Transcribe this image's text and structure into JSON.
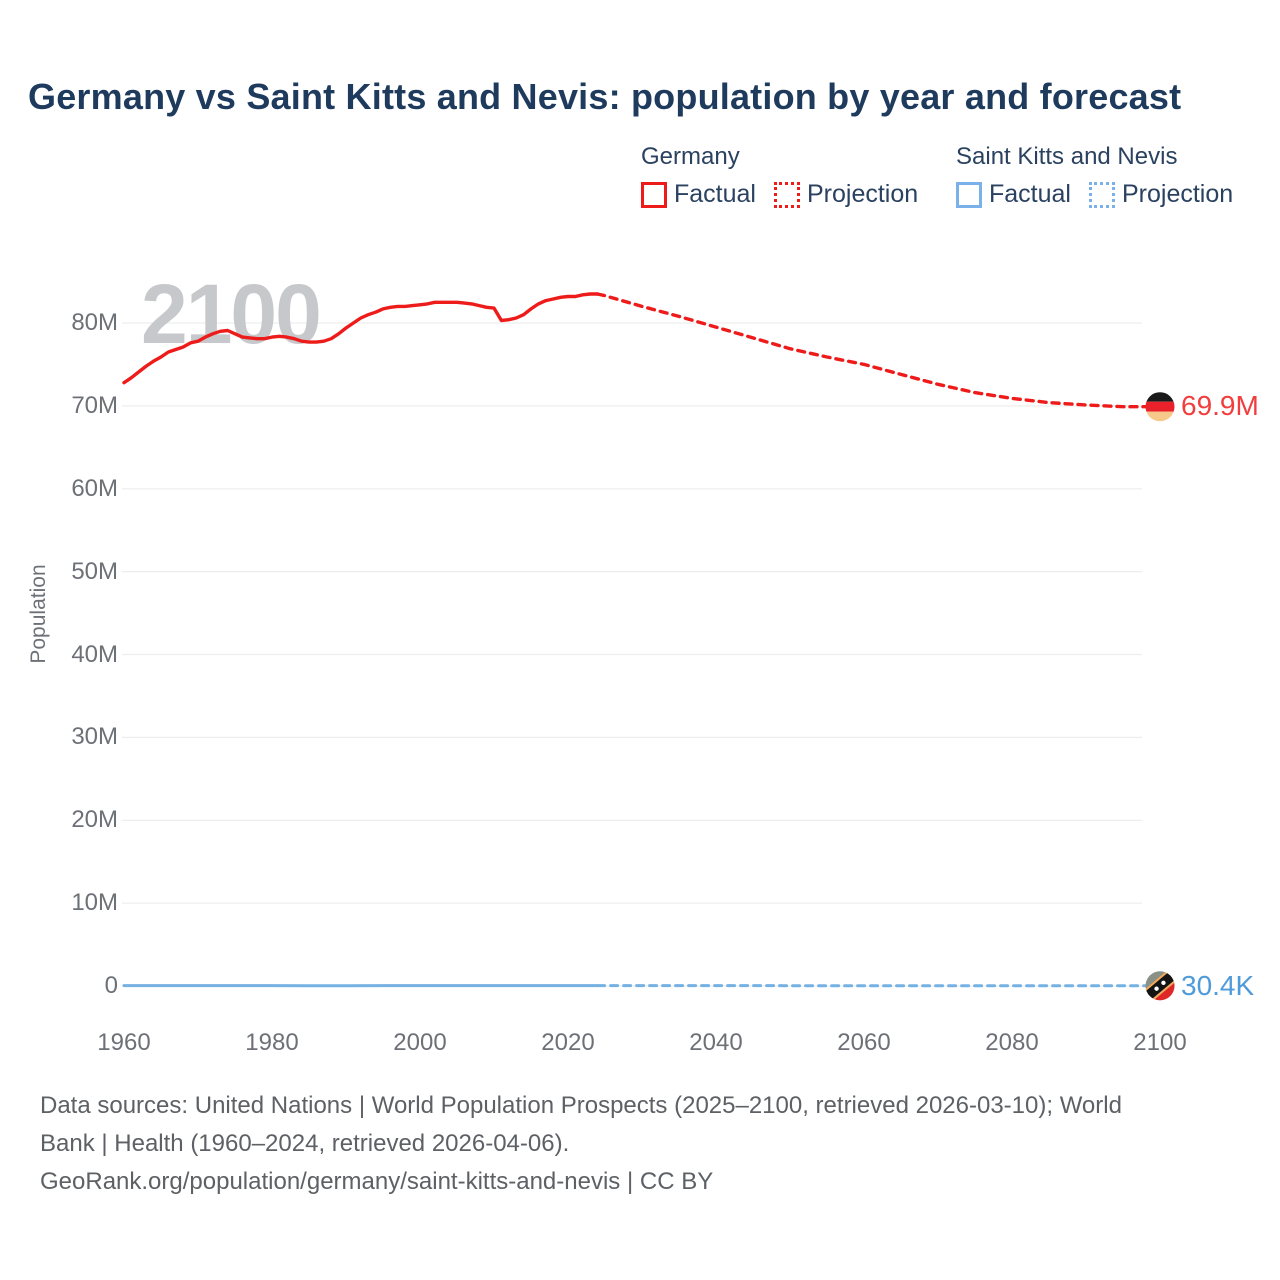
{
  "title": "Germany vs Saint Kitts and Nevis: population by year and forecast",
  "watermark": "2100",
  "y_axis_title": "Population",
  "legend": {
    "germany": {
      "title": "Germany",
      "factual_label": "Factual",
      "projection_label": "Projection"
    },
    "saint_kitts_and_nevis": {
      "title": "Saint Kitts and Nevis",
      "factual_label": "Factual",
      "projection_label": "Projection"
    }
  },
  "end_labels": {
    "germany": "69.9M",
    "saint_kitts_and_nevis": "30.4K"
  },
  "footer": {
    "line1": "Data sources: United Nations | World Population Prospects (2025–2100, retrieved 2026-03-10); World",
    "line2": "Bank | Health (1960–2024, retrieved 2026-04-06).",
    "line3": "GeoRank.org/population/germany/saint-kitts-and-nevis | CC BY"
  },
  "colors": {
    "title_text": "#1e3b5e",
    "legend_text": "#2a4160",
    "axis_text": "#6d7177",
    "footer_text": "#5d6165",
    "watermark": "#c6c8cb",
    "gridline": "#ededef",
    "germany": "#ee1b1b",
    "germany_label": "#f23d3d",
    "saint_kitts_and_nevis": "#75b1e3",
    "saint_kitts_and_nevis_label": "#4f9ad8",
    "legend_blue_box": "#7ab1e8",
    "flag_germany": [
      "#1a1a1a",
      "#e8212b",
      "#f6c88a"
    ],
    "flag_skn_green": "#8b9086",
    "flag_skn_red": "#e02728",
    "flag_skn_yellow": "#f2a85c",
    "flag_skn_black": "#141414"
  },
  "chart_data": {
    "type": "line",
    "title": "Germany vs Saint Kitts and Nevis: population by year and forecast",
    "xlabel": "",
    "ylabel": "Population",
    "values_unit": "millions",
    "xlim": [
      1960,
      2100
    ],
    "ylim_millions": [
      0,
      80
    ],
    "grid": true,
    "legend_position": "top-right",
    "x_ticks": [
      "1960",
      "1980",
      "2000",
      "2020",
      "2040",
      "2060",
      "2080",
      "2100"
    ],
    "y_ticks": [
      "0",
      "10M",
      "20M",
      "30M",
      "40M",
      "50M",
      "60M",
      "70M",
      "80M"
    ],
    "series": [
      {
        "name": "Germany — Factual",
        "style": "solid",
        "color_key": "germany",
        "width": 3.4,
        "points": [
          [
            1960,
            72.8
          ],
          [
            1961,
            73.4
          ],
          [
            1962,
            74.1
          ],
          [
            1963,
            74.8
          ],
          [
            1964,
            75.4
          ],
          [
            1965,
            75.9
          ],
          [
            1966,
            76.5
          ],
          [
            1967,
            76.8
          ],
          [
            1968,
            77.1
          ],
          [
            1969,
            77.6
          ],
          [
            1970,
            77.8
          ],
          [
            1971,
            78.3
          ],
          [
            1972,
            78.7
          ],
          [
            1973,
            79.0
          ],
          [
            1974,
            79.1
          ],
          [
            1975,
            78.7
          ],
          [
            1976,
            78.3
          ],
          [
            1977,
            78.2
          ],
          [
            1978,
            78.1
          ],
          [
            1979,
            78.1
          ],
          [
            1980,
            78.3
          ],
          [
            1981,
            78.4
          ],
          [
            1982,
            78.3
          ],
          [
            1983,
            78.1
          ],
          [
            1984,
            77.8
          ],
          [
            1985,
            77.7
          ],
          [
            1986,
            77.7
          ],
          [
            1987,
            77.8
          ],
          [
            1988,
            78.1
          ],
          [
            1989,
            78.7
          ],
          [
            1990,
            79.4
          ],
          [
            1991,
            80.0
          ],
          [
            1992,
            80.6
          ],
          [
            1993,
            81.0
          ],
          [
            1994,
            81.3
          ],
          [
            1995,
            81.7
          ],
          [
            1996,
            81.9
          ],
          [
            1997,
            82.0
          ],
          [
            1998,
            82.0
          ],
          [
            1999,
            82.1
          ],
          [
            2000,
            82.2
          ],
          [
            2001,
            82.3
          ],
          [
            2002,
            82.5
          ],
          [
            2003,
            82.5
          ],
          [
            2004,
            82.5
          ],
          [
            2005,
            82.5
          ],
          [
            2006,
            82.4
          ],
          [
            2007,
            82.3
          ],
          [
            2008,
            82.1
          ],
          [
            2009,
            81.9
          ],
          [
            2010,
            81.8
          ],
          [
            2011,
            80.3
          ],
          [
            2012,
            80.4
          ],
          [
            2013,
            80.6
          ],
          [
            2014,
            81.0
          ],
          [
            2015,
            81.7
          ],
          [
            2016,
            82.3
          ],
          [
            2017,
            82.7
          ],
          [
            2018,
            82.9
          ],
          [
            2019,
            83.1
          ],
          [
            2020,
            83.2
          ],
          [
            2021,
            83.2
          ],
          [
            2022,
            83.4
          ],
          [
            2023,
            83.5
          ],
          [
            2024,
            83.5
          ]
        ]
      },
      {
        "name": "Germany — Projection",
        "style": "dotted",
        "color_key": "germany",
        "width": 3.4,
        "points": [
          [
            2025,
            83.3
          ],
          [
            2030,
            82.0
          ],
          [
            2035,
            80.8
          ],
          [
            2040,
            79.5
          ],
          [
            2045,
            78.2
          ],
          [
            2050,
            76.9
          ],
          [
            2055,
            75.9
          ],
          [
            2060,
            75.0
          ],
          [
            2065,
            73.8
          ],
          [
            2070,
            72.6
          ],
          [
            2075,
            71.6
          ],
          [
            2080,
            70.9
          ],
          [
            2085,
            70.4
          ],
          [
            2090,
            70.1
          ],
          [
            2095,
            69.9
          ],
          [
            2100,
            69.9
          ]
        ]
      },
      {
        "name": "Saint Kitts and Nevis — Factual",
        "style": "solid",
        "color_key": "saint_kitts_and_nevis",
        "width": 3,
        "points": [
          [
            1960,
            0.0512
          ],
          [
            1965,
            0.0482
          ],
          [
            1970,
            0.0455
          ],
          [
            1975,
            0.0445
          ],
          [
            1980,
            0.0433
          ],
          [
            1985,
            0.0418
          ],
          [
            1990,
            0.0403
          ],
          [
            1995,
            0.0424
          ],
          [
            2000,
            0.0455
          ],
          [
            2005,
            0.0469
          ],
          [
            2010,
            0.0478
          ],
          [
            2015,
            0.0476
          ],
          [
            2020,
            0.0472
          ],
          [
            2024,
            0.0468
          ]
        ]
      },
      {
        "name": "Saint Kitts and Nevis — Projection",
        "style": "dotted",
        "color_key": "saint_kitts_and_nevis",
        "width": 3,
        "points": [
          [
            2025,
            0.0467
          ],
          [
            2030,
            0.0459
          ],
          [
            2040,
            0.0438
          ],
          [
            2050,
            0.0412
          ],
          [
            2060,
            0.0384
          ],
          [
            2070,
            0.0356
          ],
          [
            2080,
            0.033
          ],
          [
            2090,
            0.0314
          ],
          [
            2100,
            0.0304
          ]
        ]
      }
    ]
  }
}
